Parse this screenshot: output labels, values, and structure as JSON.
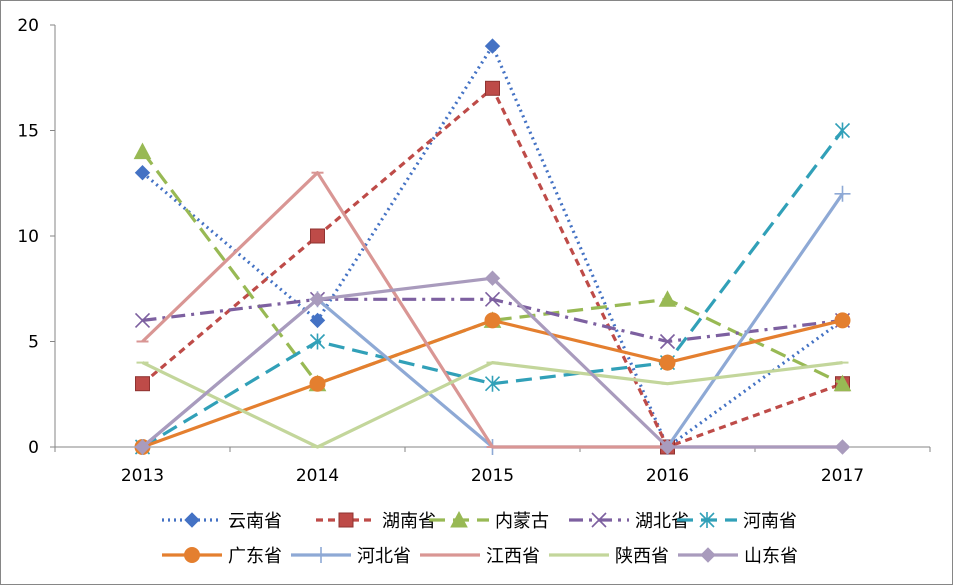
{
  "chart_data": {
    "type": "line",
    "title": "",
    "xlabel": "",
    "ylabel": "",
    "x": [
      "2013",
      "2014",
      "2015",
      "2016",
      "2017"
    ],
    "ylim": [
      0,
      20
    ],
    "yticks": [
      0,
      5,
      10,
      15,
      20
    ],
    "grid": false,
    "legend_position": "bottom",
    "series": [
      {
        "name": "云南省",
        "values": [
          13,
          6,
          19,
          0,
          6
        ],
        "color": "#4472C4",
        "dash": "dot",
        "marker": "diamond"
      },
      {
        "name": "湖南省",
        "values": [
          3,
          10,
          17,
          0,
          3
        ],
        "color": "#BE4B48",
        "dash": "dash",
        "marker": "square"
      },
      {
        "name": "内蒙古",
        "values": [
          14,
          3,
          6,
          7,
          3
        ],
        "color": "#98B954",
        "dash": "longdash",
        "marker": "triangle"
      },
      {
        "name": "湖北省",
        "values": [
          6,
          7,
          7,
          5,
          6
        ],
        "color": "#7D60A0",
        "dash": "dashdot",
        "marker": "x"
      },
      {
        "name": "河南省",
        "values": [
          0,
          5,
          3,
          4,
          15
        ],
        "color": "#31A0B8",
        "dash": "longdash",
        "marker": "star"
      },
      {
        "name": "广东省",
        "values": [
          0,
          3,
          6,
          4,
          6
        ],
        "color": "#E47F2F",
        "dash": "solid",
        "marker": "circle"
      },
      {
        "name": "河北省",
        "values": [
          0,
          7,
          0,
          0,
          12
        ],
        "color": "#8EA9D5",
        "dash": "solid",
        "marker": "plus"
      },
      {
        "name": "江西省",
        "values": [
          5,
          13,
          0,
          0,
          0
        ],
        "color": "#D99694",
        "dash": "solid",
        "marker": "dash"
      },
      {
        "name": "陕西省",
        "values": [
          4,
          0,
          4,
          3,
          4
        ],
        "color": "#C3D69B",
        "dash": "solid",
        "marker": "dash"
      },
      {
        "name": "山东省",
        "values": [
          0,
          7,
          8,
          0,
          0
        ],
        "color": "#A99BBD",
        "dash": "solid",
        "marker": "diamond"
      }
    ]
  }
}
